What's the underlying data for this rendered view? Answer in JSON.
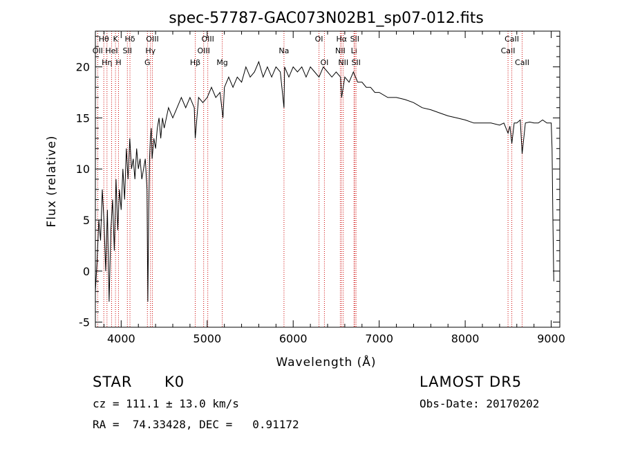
{
  "chart_data": {
    "type": "line",
    "title": "spec-57787-GAC073N02B1_sp07-012.fits",
    "xlabel": "Wavelength (Å)",
    "ylabel": "Flux (relative)",
    "xlim": [
      3700,
      9100
    ],
    "ylim": [
      -5.5,
      23.5
    ],
    "x_ticks": [
      4000,
      5000,
      6000,
      7000,
      8000,
      9000
    ],
    "y_ticks": [
      -5,
      0,
      5,
      10,
      15,
      20
    ],
    "x_tick_labels": [
      "4000",
      "5000",
      "6000",
      "7000",
      "8000",
      "9000"
    ],
    "y_tick_labels": [
      "-5",
      "0",
      "5",
      "10",
      "15",
      "20"
    ],
    "grid": false,
    "series": [
      {
        "color": "#000000",
        "x": [
          3700,
          3720,
          3740,
          3760,
          3780,
          3800,
          3820,
          3840,
          3860,
          3880,
          3900,
          3920,
          3940,
          3960,
          3980,
          4000,
          4020,
          4040,
          4060,
          4080,
          4100,
          4120,
          4140,
          4160,
          4180,
          4200,
          4220,
          4240,
          4260,
          4280,
          4300,
          4310,
          4320,
          4330,
          4340,
          4350,
          4360,
          4380,
          4400,
          4420,
          4440,
          4460,
          4480,
          4500,
          4550,
          4600,
          4650,
          4700,
          4750,
          4800,
          4850,
          4861,
          4900,
          4950,
          5000,
          5050,
          5100,
          5150,
          5183,
          5200,
          5250,
          5300,
          5350,
          5400,
          5450,
          5500,
          5550,
          5600,
          5650,
          5700,
          5750,
          5800,
          5850,
          5893,
          5900,
          5950,
          6000,
          6050,
          6100,
          6150,
          6200,
          6250,
          6300,
          6350,
          6400,
          6450,
          6500,
          6550,
          6563,
          6600,
          6650,
          6700,
          6750,
          6800,
          6850,
          6900,
          6950,
          7000,
          7100,
          7200,
          7300,
          7400,
          7500,
          7600,
          7700,
          7800,
          7900,
          8000,
          8100,
          8200,
          8300,
          8400,
          8450,
          8498,
          8520,
          8542,
          8570,
          8600,
          8640,
          8662,
          8700,
          8750,
          8800,
          8850,
          8900,
          8950,
          8980,
          9000,
          9010,
          9020,
          9030
        ],
        "values": [
          -2,
          1,
          5,
          3,
          8,
          5,
          0,
          6,
          -3,
          4,
          7,
          2,
          9,
          4,
          8,
          6,
          10,
          7,
          12,
          9,
          13,
          10,
          11,
          9,
          12,
          10,
          11,
          9,
          10,
          11,
          8,
          -3,
          6,
          11,
          13,
          14,
          11,
          13,
          12,
          14,
          15,
          13,
          15,
          14,
          16,
          15,
          16,
          17,
          16,
          17,
          16,
          13,
          17,
          16.5,
          17,
          18,
          17,
          17.5,
          15,
          18,
          19,
          18,
          19,
          18.5,
          20,
          19,
          19.5,
          20.5,
          19,
          20,
          19,
          20,
          19.5,
          16,
          20,
          19,
          20,
          19.5,
          20,
          19,
          20,
          19.5,
          19,
          20,
          19.5,
          19,
          19.5,
          19,
          17,
          19,
          18.5,
          19.5,
          18.5,
          18.5,
          18,
          18,
          17.5,
          17.5,
          17,
          17,
          16.8,
          16.5,
          16,
          15.8,
          15.5,
          15.2,
          15,
          14.8,
          14.5,
          14.5,
          14.5,
          14.3,
          14.5,
          13.5,
          14.2,
          12.5,
          14.5,
          14.5,
          14.8,
          11.5,
          14.5,
          14.6,
          14.5,
          14.5,
          14.8,
          14.5,
          14.5,
          14.5,
          12,
          5,
          -1
        ]
      }
    ],
    "lines": [
      {
        "x": 3727,
        "label": "OII",
        "row": 1
      },
      {
        "x": 3798,
        "label": "Hθ",
        "row": 0
      },
      {
        "x": 3835,
        "label": "Hη",
        "row": 2
      },
      {
        "x": 3889,
        "label": "HeI",
        "row": 1
      },
      {
        "x": 3934,
        "label": "K",
        "row": 0
      },
      {
        "x": 3969,
        "label": "H",
        "row": 2
      },
      {
        "x": 4072,
        "label": "SII",
        "row": 1
      },
      {
        "x": 4102,
        "label": "Hδ",
        "row": 0
      },
      {
        "x": 4305,
        "label": "G",
        "row": 2
      },
      {
        "x": 4341,
        "label": "Hγ",
        "row": 1
      },
      {
        "x": 4363,
        "label": "OIII",
        "row": 0
      },
      {
        "x": 4861,
        "label": "Hβ",
        "row": 2
      },
      {
        "x": 4959,
        "label": "OIII",
        "row": 1
      },
      {
        "x": 5007,
        "label": "OIII",
        "row": 0
      },
      {
        "x": 5175,
        "label": "Mg",
        "row": 2
      },
      {
        "x": 5893,
        "label": "Na",
        "row": 1
      },
      {
        "x": 6300,
        "label": "OI",
        "row": 0
      },
      {
        "x": 6363,
        "label": "OI",
        "row": 2
      },
      {
        "x": 6548,
        "label": "NII",
        "row": 1
      },
      {
        "x": 6563,
        "label": "Hα",
        "row": 0
      },
      {
        "x": 6583,
        "label": "NII",
        "row": 2
      },
      {
        "x": 6707,
        "label": "Li",
        "row": 1
      },
      {
        "x": 6716,
        "label": "SII",
        "row": 0
      },
      {
        "x": 6731,
        "label": "SII",
        "row": 2
      },
      {
        "x": 8498,
        "label": "CaII",
        "row": 1
      },
      {
        "x": 8542,
        "label": "CaII",
        "row": 0
      },
      {
        "x": 8662,
        "label": "CaII",
        "row": 2
      }
    ],
    "annotations": {
      "left": [
        "STAR",
        "K0",
        "cz = 111.1 ± 13.0 km/s",
        "RA =  74.33428, DEC =   0.91172"
      ],
      "right": [
        "LAMOST DR5",
        "Obs-Date: 20170202"
      ]
    }
  },
  "info": {
    "class": "STAR",
    "subclass": "K0",
    "cz": "cz = 111.1 ± 13.0 km/s",
    "coords": "RA =  74.33428, DEC =   0.91172",
    "survey": "LAMOST DR5",
    "obs_date": "Obs-Date: 20170202"
  },
  "colors": {
    "spectrum": "#000000",
    "line_marker": "#cc0000",
    "background": "#ffffff"
  }
}
